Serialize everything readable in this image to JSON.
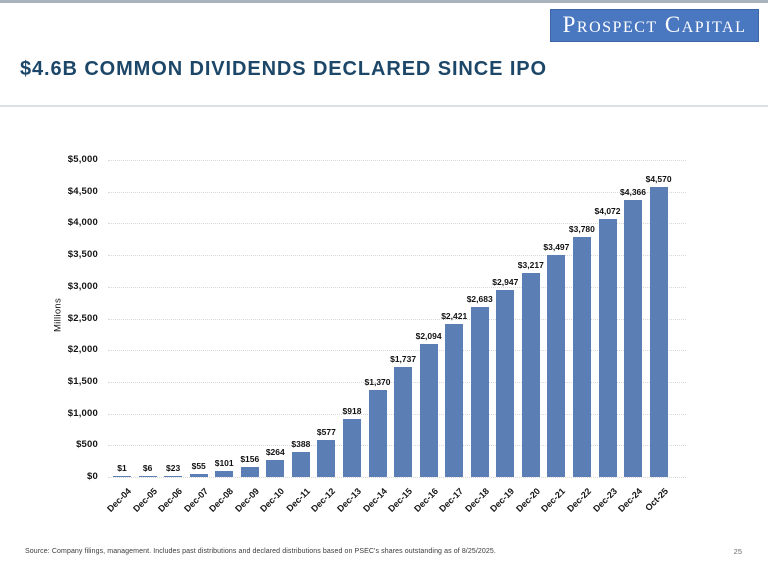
{
  "header": {
    "logo_text": "Prospect Capital",
    "title": "$4.6B COMMON DIVIDENDS DECLARED SINCE IPO"
  },
  "colors": {
    "bar_blue": "#5b7eb5",
    "logo_blue": "#4a78c0",
    "title_navy": "#1d4768",
    "top_border_gray": "#a9b3bd"
  },
  "chart_data": {
    "type": "bar",
    "title": "",
    "xlabel": "",
    "ylabel": "Millions",
    "ylim": [
      0,
      5000
    ],
    "ytick_interval": 500,
    "ytick_labels": [
      "$0",
      "$500",
      "$1,000",
      "$1,500",
      "$2,000",
      "$2,500",
      "$3,000",
      "$3,500",
      "$4,000",
      "$4,500",
      "$5,000"
    ],
    "grid": "horizontal-dotted",
    "legend": "none",
    "bar_color": "#5b7eb5",
    "categories": [
      "Dec-04",
      "Dec-05",
      "Dec-06",
      "Dec-07",
      "Dec-08",
      "Dec-09",
      "Dec-10",
      "Dec-11",
      "Dec-12",
      "Dec-13",
      "Dec-14",
      "Dec-15",
      "Dec-16",
      "Dec-17",
      "Dec-18",
      "Dec-19",
      "Dec-20",
      "Dec-21",
      "Dec-22",
      "Dec-23",
      "Dec-24",
      "Oct-25"
    ],
    "values": [
      1,
      6,
      23,
      55,
      101,
      156,
      264,
      388,
      577,
      918,
      1370,
      1737,
      2094,
      2421,
      2683,
      2947,
      3217,
      3497,
      3780,
      4072,
      4366,
      4570
    ],
    "value_labels": [
      "$1",
      "$6",
      "$23",
      "$55",
      "$101",
      "$156",
      "$264",
      "$388",
      "$577",
      "$918",
      "$1,370",
      "$1,737",
      "$2,094",
      "$2,421",
      "$2,683",
      "$2,947",
      "$3,217",
      "$3,497",
      "$3,780",
      "$4,072",
      "$4,366",
      "$4,570"
    ]
  },
  "footer": {
    "source": "Source: Company filings, management. Includes past distributions and declared distributions based on PSEC's shares outstanding as of 8/25/2025.",
    "page_number": "25"
  }
}
